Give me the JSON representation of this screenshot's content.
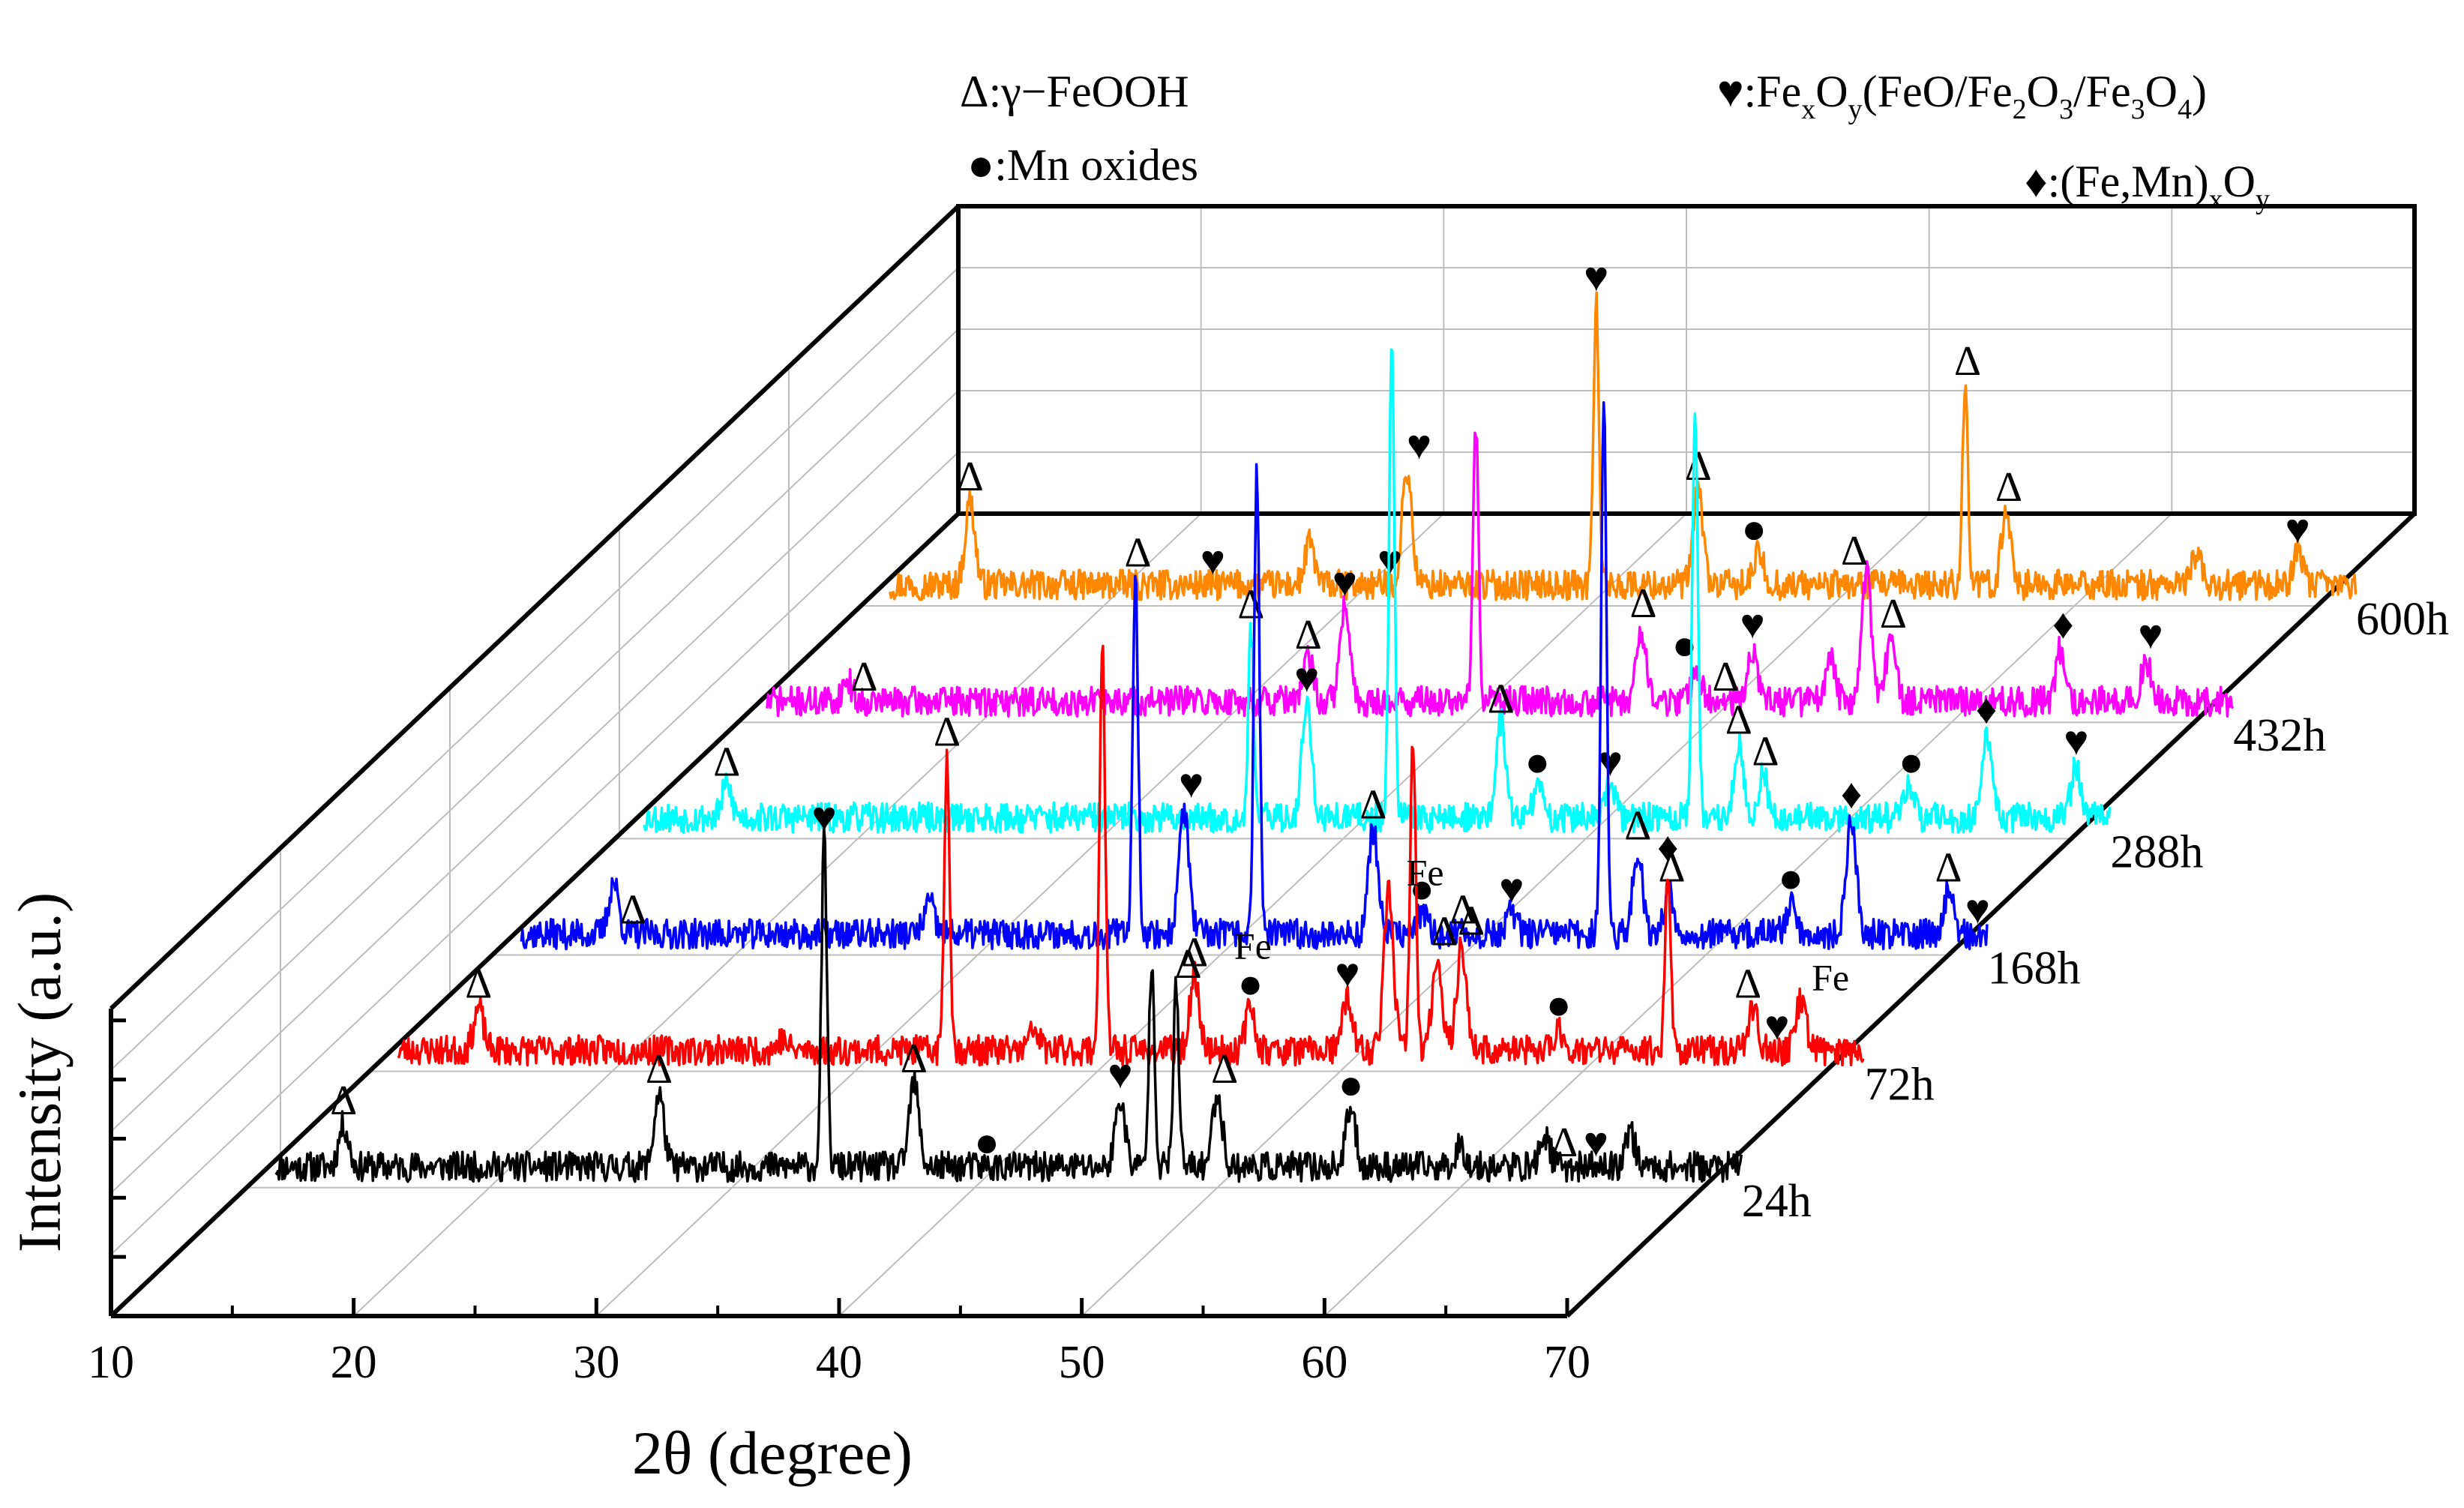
{
  "chart_data": {
    "type": "line",
    "subtype": "3d-waterfall-xrd",
    "xlabel": "2θ (degree)",
    "ylabel": "Intensity (a.u.)",
    "xlim": [
      10,
      70
    ],
    "x_ticks": [
      "10",
      "20",
      "30",
      "40",
      "50",
      "60",
      "70"
    ],
    "grid": true,
    "legend": {
      "placement": "top-back",
      "entries": [
        {
          "symbol": "Δ",
          "label": ":γ−FeOOH"
        },
        {
          "symbol": "●",
          "label": ":Mn oxides"
        },
        {
          "symbol": "♥",
          "label_parts": [
            ":Fe",
            "x",
            "O",
            "y",
            "(FeO/Fe",
            "2",
            "O",
            "3",
            "/Fe",
            "3",
            "O",
            "4",
            ")"
          ]
        },
        {
          "symbol": "♦",
          "label_parts": [
            ":(Fe,Mn)",
            "x",
            "O",
            "y"
          ]
        }
      ]
    },
    "series": [
      {
        "name": "24h",
        "color": "#000000",
        "noise": 1.3,
        "seed": 11,
        "peaks": [
          [
            14,
            8
          ],
          [
            27,
            14
          ],
          [
            33.8,
            62
          ],
          [
            37.5,
            16
          ],
          [
            46,
            13
          ],
          [
            47.3,
            40
          ],
          [
            48.3,
            34
          ],
          [
            50,
            14
          ],
          [
            55.5,
            11
          ],
          [
            60,
            4
          ],
          [
            63.5,
            6
          ],
          [
            67,
            7
          ]
        ],
        "markers": [
          {
            "sym": "Δ",
            "x": 14
          },
          {
            "sym": "Δ",
            "x": 27
          },
          {
            "sym": "♥",
            "x": 33.8
          },
          {
            "sym": "Δ",
            "x": 37.5
          },
          {
            "sym": "●",
            "x": 40.5
          },
          {
            "sym": "♥",
            "x": 46
          },
          {
            "sym": "Δ",
            "x": 48.8
          },
          {
            "sym": "Δ",
            "x": 50.3
          },
          {
            "sym": "●",
            "x": 55.5
          },
          {
            "sym": "Δ",
            "x": 64.3
          },
          {
            "sym": "♥",
            "x": 65.6
          }
        ]
      },
      {
        "name": "72h",
        "color": "#ff0000",
        "noise": 1.3,
        "seed": 23,
        "peaks": [
          [
            14.5,
            8
          ],
          [
            27,
            2
          ],
          [
            33.8,
            56
          ],
          [
            37.4,
            4
          ],
          [
            40.2,
            78
          ],
          [
            44,
            14
          ],
          [
            46.3,
            8
          ],
          [
            50.3,
            10
          ],
          [
            52,
            30
          ],
          [
            53,
            60
          ],
          [
            54,
            18
          ],
          [
            55,
            20
          ],
          [
            59,
            4
          ],
          [
            63.5,
            34
          ],
          [
            67,
            8
          ],
          [
            69,
            10
          ]
        ],
        "markers": [
          {
            "sym": "Δ",
            "x": 14.5
          },
          {
            "sym": "Δ",
            "x": 33.8
          },
          {
            "sym": "Δ",
            "x": 44
          },
          {
            "sym": "●",
            "x": 46.3
          },
          {
            "sym": "♥",
            "x": 50.3
          },
          {
            "sym": "Δ",
            "x": 54.3
          },
          {
            "sym": "Δ",
            "x": 55.4
          },
          {
            "sym": "●",
            "x": 59
          },
          {
            "sym": "♦",
            "x": 63.5
          },
          {
            "sym": "Δ",
            "x": 66.8
          },
          {
            "sym": "♥",
            "x": 68
          }
        ],
        "fe_labels": [
          {
            "x": 46.4,
            "ds": 0.6,
            "h": 14
          },
          {
            "x": 53.5,
            "ds": 1,
            "h": 28
          },
          {
            "x": 70.2,
            "ds": 1,
            "h": 8
          }
        ]
      },
      {
        "name": "168h",
        "color": "#0000ff",
        "noise": 1.3,
        "seed": 37,
        "peaks": [
          [
            15,
            10
          ],
          [
            28,
            6
          ],
          [
            36.5,
            68
          ],
          [
            38.5,
            24
          ],
          [
            41.5,
            88
          ],
          [
            46.3,
            20
          ],
          [
            48.3,
            4
          ],
          [
            52,
            4
          ],
          [
            55.8,
            100
          ],
          [
            57.2,
            16
          ],
          [
            58.5,
            8
          ],
          [
            63.5,
            6
          ],
          [
            66,
            22
          ],
          [
            70,
            8
          ]
        ],
        "markers": [
          {
            "sym": "Δ",
            "x": 15.8
          },
          {
            "sym": "Δ",
            "x": 36.6
          },
          {
            "sym": "♥",
            "x": 38.8
          },
          {
            "sym": "Δ",
            "x": 46.3
          },
          {
            "sym": "●",
            "x": 48.3
          },
          {
            "sym": "Δ",
            "x": 50
          },
          {
            "sym": "♥",
            "x": 52
          },
          {
            "sym": "Δ",
            "x": 57.2
          },
          {
            "sym": "Δ",
            "x": 58.6
          },
          {
            "sym": "●",
            "x": 63.5
          },
          {
            "sym": "♦",
            "x": 66
          },
          {
            "sym": "Δ",
            "x": 70
          },
          {
            "sym": "♥",
            "x": 71.2
          }
        ]
      },
      {
        "name": "288h",
        "color": "#00ffff",
        "noise": 1.3,
        "seed": 53,
        "peaks": [
          [
            14.6,
            6
          ],
          [
            36.2,
            36
          ],
          [
            38.5,
            22
          ],
          [
            42,
            90
          ],
          [
            46.5,
            18
          ],
          [
            48,
            6
          ],
          [
            51,
            6
          ],
          [
            54.5,
            78
          ],
          [
            56.3,
            14
          ],
          [
            57.3,
            8
          ],
          [
            63.3,
            6
          ],
          [
            66.5,
            16
          ],
          [
            70.2,
            10
          ]
        ],
        "markers": [
          {
            "sym": "Δ",
            "x": 14.6
          },
          {
            "sym": "Δ",
            "x": 36.2
          },
          {
            "sym": "♥",
            "x": 38.5
          },
          {
            "sym": "Δ",
            "x": 46.5
          },
          {
            "sym": "●",
            "x": 48
          },
          {
            "sym": "♥",
            "x": 51
          },
          {
            "sym": "Δ",
            "x": 56.3
          },
          {
            "sym": "Δ",
            "x": 57.4
          },
          {
            "sym": "●",
            "x": 63.4
          },
          {
            "sym": "♦",
            "x": 66.5
          },
          {
            "sym": "♥",
            "x": 70.2
          }
        ]
      },
      {
        "name": "432h",
        "color": "#ff00ff",
        "noise": 1.3,
        "seed": 71,
        "peaks": [
          [
            14.5,
            4
          ],
          [
            33.5,
            8
          ],
          [
            35,
            18
          ],
          [
            40.4,
            52
          ],
          [
            47.2,
            14
          ],
          [
            49.5,
            6
          ],
          [
            51.8,
            10
          ],
          [
            55,
            8
          ],
          [
            56.5,
            24
          ],
          [
            57.5,
            12
          ],
          [
            64.5,
            10
          ],
          [
            68,
            8
          ]
        ],
        "markers": [
          {
            "sym": "Δ",
            "x": 15.2
          },
          {
            "sym": "Δ",
            "x": 33.5
          },
          {
            "sym": "♥",
            "x": 35
          },
          {
            "sym": "Δ",
            "x": 47.3
          },
          {
            "sym": "●",
            "x": 49
          },
          {
            "sym": "Δ",
            "x": 50.7
          },
          {
            "sym": "♥",
            "x": 51.8
          },
          {
            "sym": "Δ",
            "x": 56
          },
          {
            "sym": "Δ",
            "x": 57.6
          },
          {
            "sym": "♦",
            "x": 64.6
          },
          {
            "sym": "♥",
            "x": 68.2
          }
        ]
      },
      {
        "name": "600h",
        "color": "#ff8800",
        "noise": 1.3,
        "seed": 97,
        "peaks": [
          [
            14.5,
            16
          ],
          [
            28.5,
            8
          ],
          [
            32.5,
            22
          ],
          [
            40.3,
            54
          ],
          [
            44.5,
            18
          ],
          [
            47,
            6
          ],
          [
            55.5,
            38
          ],
          [
            57.2,
            14
          ],
          [
            65,
            6
          ],
          [
            69.2,
            6
          ]
        ],
        "markers": [
          {
            "sym": "Δ",
            "x": 14.5
          },
          {
            "sym": "♥",
            "x": 24.5
          },
          {
            "sym": "♥",
            "x": 31.8
          },
          {
            "sym": "♥",
            "x": 33
          },
          {
            "sym": "♥",
            "x": 40.3
          },
          {
            "sym": "Δ",
            "x": 44.5
          },
          {
            "sym": "●",
            "x": 46.8
          },
          {
            "sym": "Δ",
            "x": 55.6
          },
          {
            "sym": "Δ",
            "x": 57.3
          },
          {
            "sym": "♥",
            "x": 69.2
          }
        ]
      }
    ]
  }
}
